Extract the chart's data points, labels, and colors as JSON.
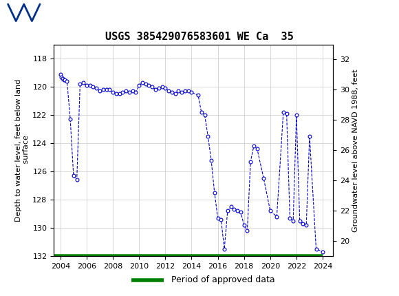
{
  "title": "USGS 385429076583601 WE Ca  35",
  "ylabel_left": "Depth to water level, feet below land\nsurface",
  "ylabel_right": "Groundwater level above NAVD 1988, feet",
  "ylim_left": [
    132,
    117
  ],
  "yticks_left": [
    118,
    120,
    122,
    124,
    126,
    128,
    130,
    132
  ],
  "yticks_right": [
    20,
    22,
    24,
    26,
    28,
    30,
    32
  ],
  "ylim_right": [
    19.0,
    33.0
  ],
  "xlim": [
    2003.5,
    2024.8
  ],
  "xticks": [
    2004,
    2006,
    2008,
    2010,
    2012,
    2014,
    2016,
    2018,
    2020,
    2022,
    2024
  ],
  "header_color": "#1b6b3a",
  "line_color": "#0000cc",
  "approved_color": "#008000",
  "bg_color": "#ffffff",
  "grid_color": "#c8c8c8",
  "title_fontsize": 11,
  "axis_label_fontsize": 8,
  "tick_fontsize": 8,
  "data_x": [
    2004.0,
    2004.08,
    2004.17,
    2004.25,
    2004.33,
    2004.5,
    2004.75,
    2005.0,
    2005.25,
    2005.5,
    2005.75,
    2006.0,
    2006.25,
    2006.5,
    2006.75,
    2007.0,
    2007.25,
    2007.5,
    2007.75,
    2008.0,
    2008.25,
    2008.5,
    2008.75,
    2009.0,
    2009.25,
    2009.5,
    2009.75,
    2010.0,
    2010.25,
    2010.5,
    2010.75,
    2011.0,
    2011.25,
    2011.5,
    2011.75,
    2012.0,
    2012.25,
    2012.5,
    2012.75,
    2013.0,
    2013.25,
    2013.5,
    2013.75,
    2014.0,
    2014.5,
    2014.75,
    2015.0,
    2015.25,
    2015.5,
    2015.75,
    2016.0,
    2016.25,
    2016.5,
    2016.75,
    2017.0,
    2017.25,
    2017.5,
    2017.75,
    2018.0,
    2018.25,
    2018.5,
    2018.75,
    2019.0,
    2019.5,
    2020.0,
    2020.5,
    2021.0,
    2021.25,
    2021.5,
    2021.75,
    2022.0,
    2022.25,
    2022.5,
    2022.75,
    2023.0,
    2023.5,
    2024.0
  ],
  "data_y": [
    119.1,
    119.3,
    119.4,
    119.5,
    119.5,
    119.6,
    122.3,
    126.3,
    126.6,
    119.8,
    119.7,
    119.9,
    119.9,
    120.0,
    120.1,
    120.3,
    120.2,
    120.2,
    120.2,
    120.4,
    120.5,
    120.5,
    120.4,
    120.3,
    120.4,
    120.3,
    120.4,
    119.9,
    119.7,
    119.8,
    119.9,
    120.0,
    120.2,
    120.1,
    120.0,
    120.1,
    120.3,
    120.4,
    120.5,
    120.3,
    120.4,
    120.3,
    120.3,
    120.4,
    120.6,
    121.8,
    122.0,
    123.5,
    125.2,
    127.5,
    129.3,
    129.4,
    131.5,
    128.8,
    128.5,
    128.7,
    128.8,
    128.9,
    129.8,
    130.2,
    125.3,
    124.2,
    124.4,
    126.5,
    128.8,
    129.2,
    121.8,
    121.9,
    129.3,
    129.5,
    122.0,
    129.5,
    129.7,
    129.8,
    123.5,
    131.5,
    131.7
  ],
  "approved_xstart": 2003.5,
  "approved_xend": 2024.0
}
